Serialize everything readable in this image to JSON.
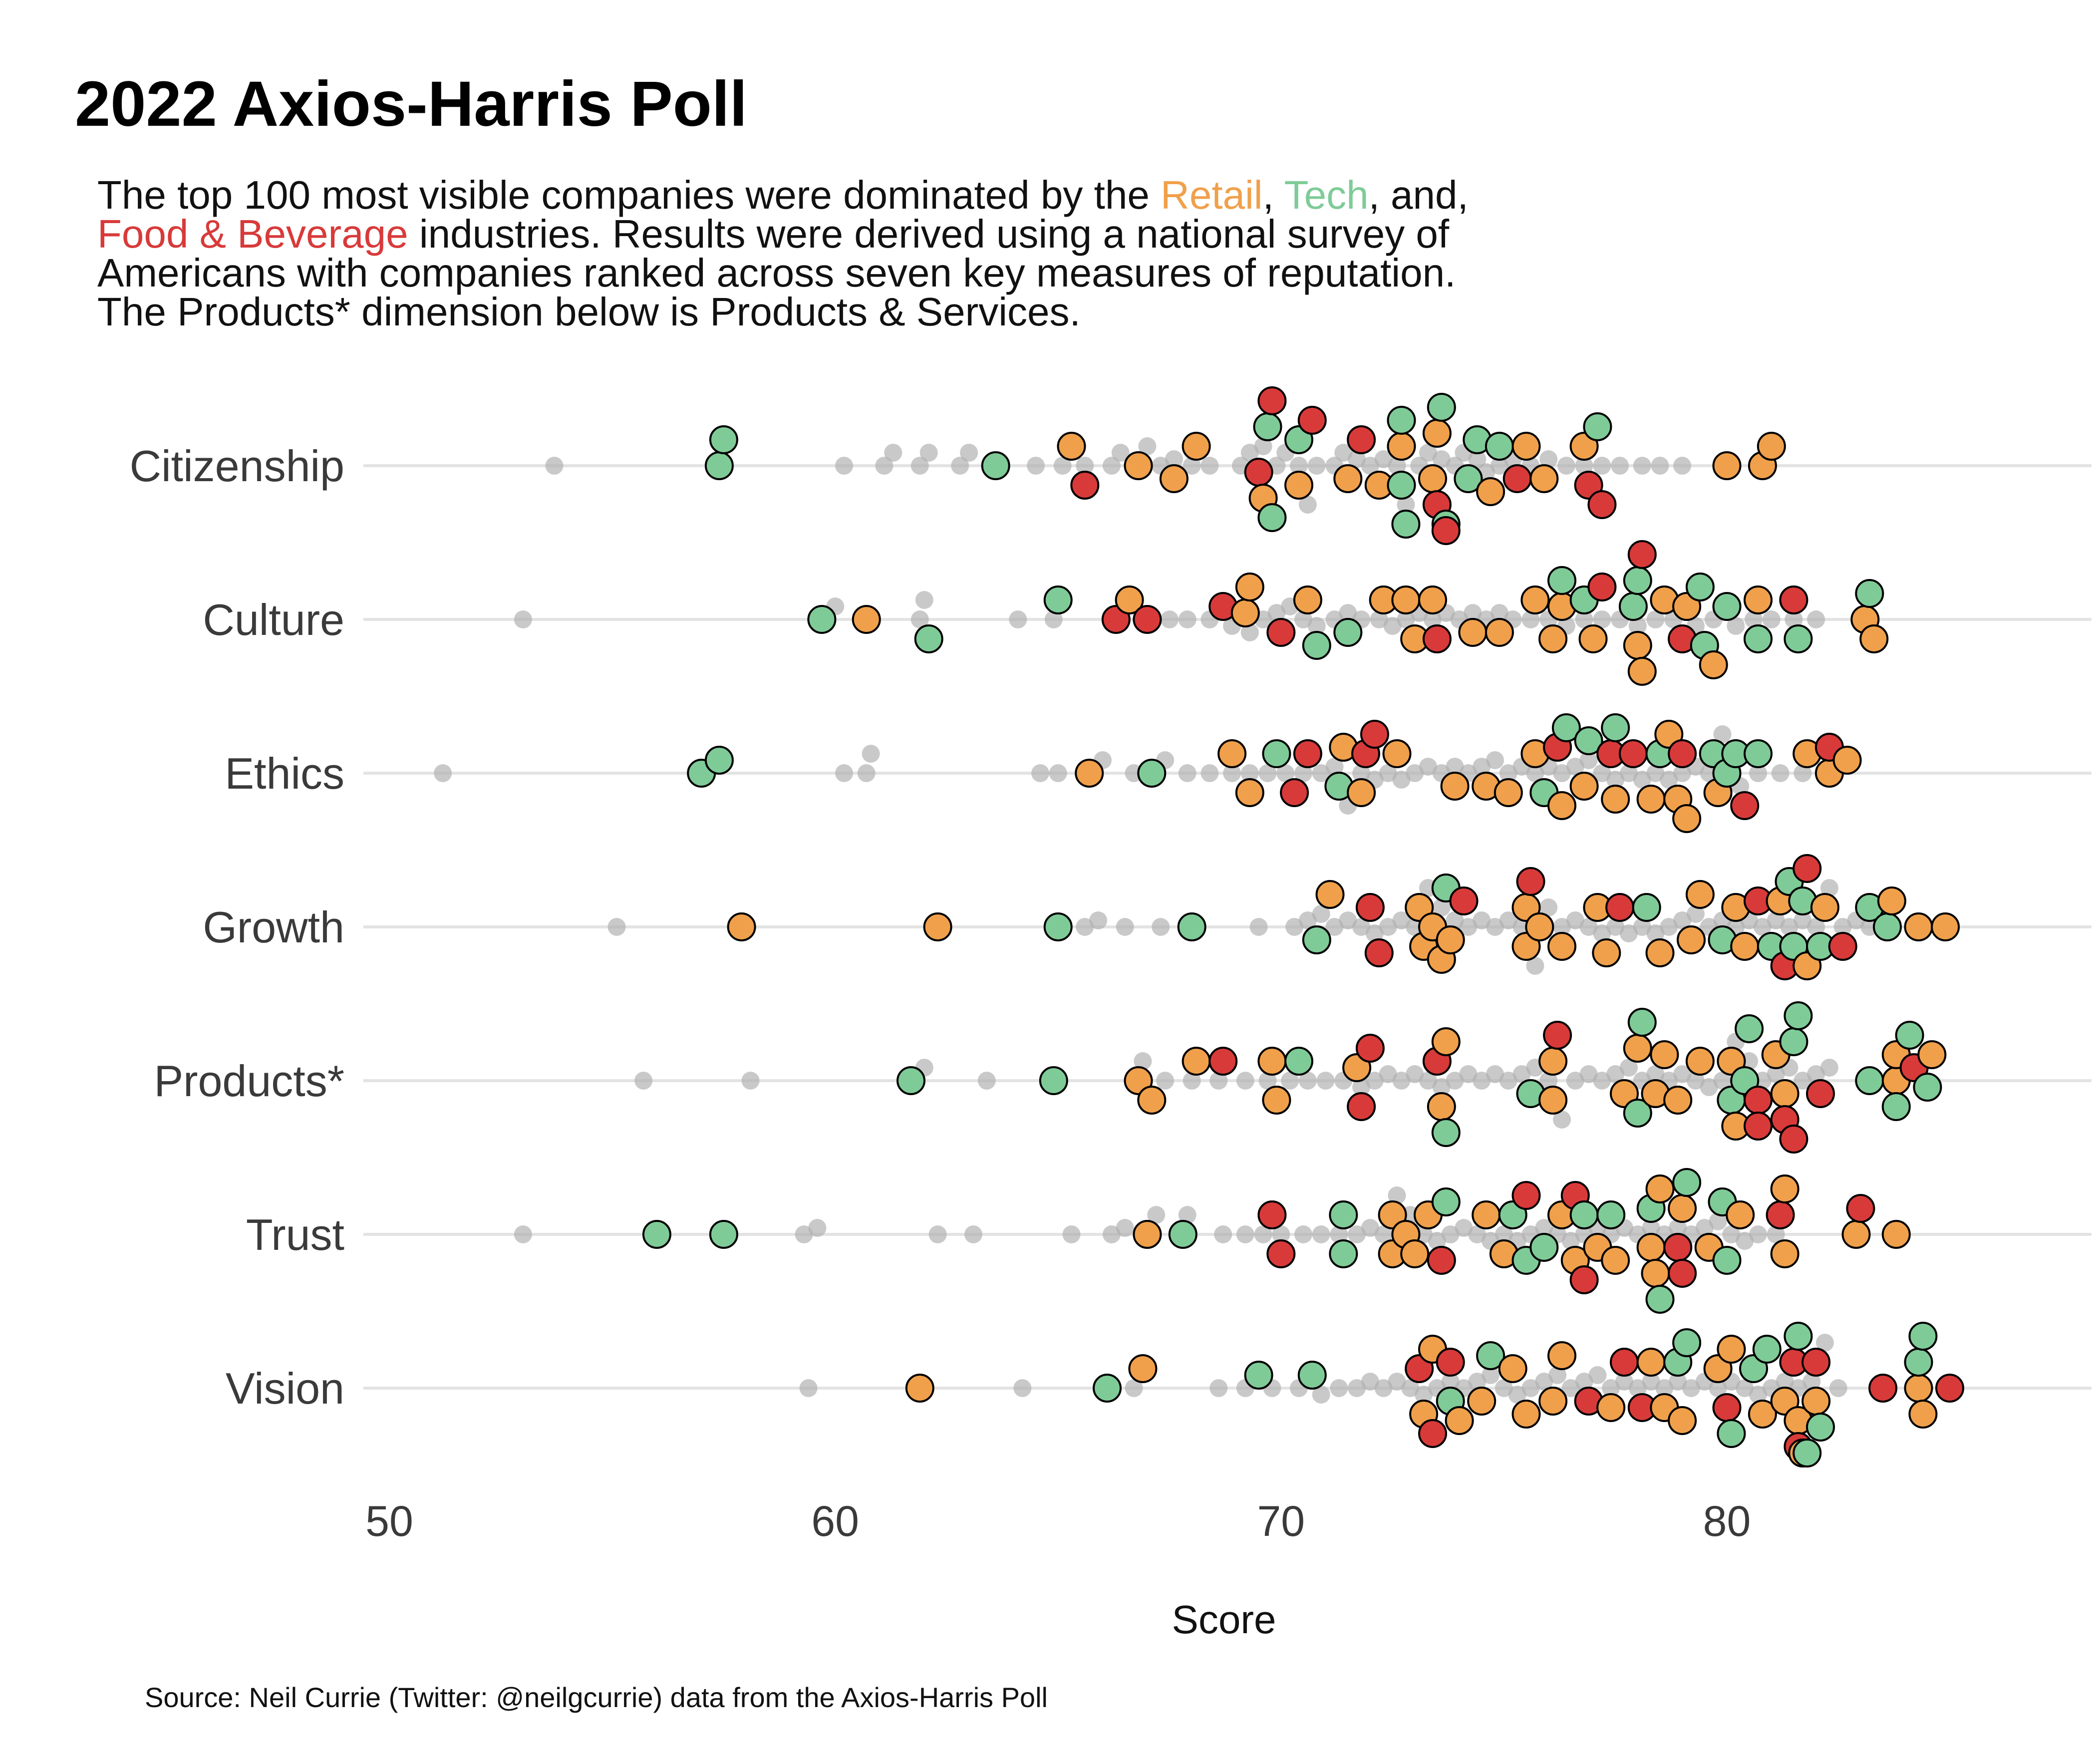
{
  "colors": {
    "retail": "#F0A04B",
    "tech": "#7FCB98",
    "food": "#D83A3A",
    "other": "#AFAFAF",
    "text": "#111111",
    "grid": "#E3E3E3"
  },
  "header": {
    "title": "2022 Axios-Harris Poll",
    "subtitle_lines": [
      [
        {
          "text": "The top 100 most visible companies were dominated by the ",
          "color": "text"
        },
        {
          "text": "Retail",
          "color": "retail"
        },
        {
          "text": ", ",
          "color": "text"
        },
        {
          "text": "Tech",
          "color": "tech"
        },
        {
          "text": ", and,",
          "color": "text"
        }
      ],
      [
        {
          "text": "Food & Beverage",
          "color": "food"
        },
        {
          "text": " industries. Results were derived using a national survey of",
          "color": "text"
        }
      ],
      [
        {
          "text": "Americans with companies ranked across seven key measures of reputation.",
          "color": "text"
        }
      ],
      [
        {
          "text": "The Products* dimension below is Products & Services.",
          "color": "text"
        }
      ]
    ]
  },
  "footer": {
    "caption": "Source: Neil Currie (Twitter: @neilgcurrie) data from the Axios-Harris Poll"
  },
  "chart_data": {
    "type": "scatter",
    "subtype": "beeswarm",
    "title": "2022 Axios-Harris Poll",
    "xlabel": "Score",
    "ylabel": "",
    "xlim": [
      50,
      86.5
    ],
    "xticks": [
      50,
      60,
      70,
      80
    ],
    "grid": "horizontal major only",
    "legend": "none (colors explained in subtitle)",
    "categories": [
      "Citizenship",
      "Culture",
      "Ethics",
      "Growth",
      "Products*",
      "Trust",
      "Vision"
    ],
    "highlight_industries": [
      "Retail",
      "Tech",
      "Food & Beverage"
    ],
    "series": [
      {
        "category": "Citizenship",
        "retail": [
          65.3,
          66.8,
          67.6,
          68.1,
          69.6,
          70.4,
          71.5,
          72.2,
          72.7,
          73.4,
          73.5,
          74.7,
          75.5,
          75.9,
          76.8,
          80.0,
          80.8,
          81.0
        ],
        "tech": [
          57.4,
          57.5,
          63.6,
          69.7,
          69.8,
          70.4,
          72.7,
          72.7,
          72.8,
          73.6,
          73.7,
          74.2,
          74.4,
          74.9,
          77.1
        ],
        "food": [
          65.6,
          69.5,
          69.8,
          70.7,
          71.8,
          73.5,
          73.7,
          75.3,
          76.9,
          77.2
        ],
        "other": [
          53.7,
          60.2,
          61.1,
          61.3,
          61.9,
          62.1,
          62.8,
          63.0,
          64.5,
          65.1,
          65.6,
          66.2,
          66.4,
          67.0,
          67.3,
          67.6,
          68.0,
          68.4,
          69.1,
          69.3,
          69.6,
          69.9,
          70.1,
          70.4,
          70.6,
          70.8,
          71.2,
          71.4,
          71.7,
          72.0,
          72.3,
          72.6,
          72.8,
          73.1,
          73.3,
          73.6,
          73.9,
          74.1,
          74.4,
          74.6,
          74.9,
          75.2,
          75.6,
          76.0,
          76.4,
          76.8,
          77.2,
          77.6,
          78.1,
          78.5,
          79.0
        ]
      },
      {
        "category": "Culture",
        "retail": [
          60.7,
          66.6,
          69.2,
          69.3,
          70.6,
          72.3,
          72.8,
          73.0,
          73.4,
          74.3,
          74.9,
          75.7,
          76.1,
          76.3,
          77.0,
          78.0,
          78.1,
          78.6,
          79.1,
          79.7,
          80.7,
          83.3,
          83.1
        ],
        "tech": [
          59.7,
          62.1,
          65.0,
          70.8,
          71.5,
          76.3,
          76.8,
          77.9,
          78.0,
          79.4,
          79.5,
          80.0,
          80.7,
          81.6,
          83.2
        ],
        "food": [
          66.3,
          67.0,
          68.7,
          70.0,
          73.5,
          77.2,
          78.1,
          79.0,
          81.5
        ],
        "other": [
          53.0,
          60.0,
          61.9,
          62.0,
          64.1,
          64.9,
          67.5,
          67.9,
          68.4,
          68.9,
          69.3,
          69.6,
          69.9,
          70.2,
          70.5,
          70.8,
          71.2,
          71.5,
          71.8,
          72.2,
          72.5,
          72.8,
          73.1,
          73.4,
          73.7,
          74.0,
          74.3,
          74.6,
          74.9,
          75.2,
          75.6,
          76.0,
          76.4,
          76.8,
          77.2,
          77.6,
          78.0,
          78.4,
          78.8,
          79.3,
          79.7,
          80.2,
          80.6,
          81.0,
          81.5,
          82.0
        ]
      },
      {
        "category": "Ethics",
        "retail": [
          65.7,
          68.9,
          69.3,
          71.4,
          71.8,
          72.6,
          73.9,
          74.6,
          75.1,
          75.7,
          76.3,
          76.8,
          77.5,
          78.3,
          78.7,
          78.9,
          79.1,
          79.8,
          81.8,
          82.3,
          82.7
        ],
        "tech": [
          57.0,
          57.4,
          67.1,
          69.9,
          71.3,
          75.9,
          76.4,
          76.9,
          77.5,
          78.5,
          79.7,
          80.0,
          80.2,
          80.7
        ],
        "food": [
          70.3,
          70.6,
          71.9,
          72.1,
          76.2,
          77.4,
          77.9,
          79.0,
          80.4,
          82.3
        ],
        "other": [
          51.2,
          60.2,
          60.7,
          60.8,
          64.6,
          65.0,
          66.0,
          66.7,
          67.4,
          67.9,
          68.4,
          68.9,
          69.3,
          69.7,
          70.1,
          70.5,
          70.9,
          71.2,
          71.5,
          71.8,
          72.1,
          72.4,
          72.7,
          73.0,
          73.3,
          73.6,
          73.9,
          74.2,
          74.5,
          74.8,
          75.1,
          75.4,
          75.7,
          76.0,
          76.3,
          76.6,
          76.9,
          77.2,
          77.5,
          77.8,
          78.1,
          78.4,
          78.7,
          79.0,
          79.3,
          79.6,
          79.9,
          80.3,
          80.7,
          81.2,
          81.7
        ]
      },
      {
        "category": "Growth",
        "retail": [
          57.9,
          62.3,
          71.1,
          73.1,
          73.2,
          73.4,
          73.6,
          73.8,
          75.5,
          75.5,
          75.8,
          76.3,
          77.1,
          77.3,
          78.5,
          79.2,
          79.4,
          80.2,
          80.4,
          81.2,
          81.8,
          82.2,
          83.7,
          84.3,
          84.9
        ],
        "tech": [
          65.0,
          68.0,
          70.8,
          73.7,
          78.2,
          79.9,
          81.0,
          81.4,
          81.5,
          81.7,
          82.1,
          83.2,
          83.6
        ],
        "food": [
          72.0,
          72.2,
          74.1,
          75.6,
          77.6,
          80.7,
          81.3,
          81.8,
          82.6
        ],
        "other": [
          55.1,
          65.6,
          65.9,
          66.5,
          67.3,
          69.5,
          70.3,
          70.6,
          70.9,
          71.2,
          71.5,
          71.8,
          72.1,
          72.4,
          72.7,
          73.0,
          73.3,
          73.6,
          73.9,
          74.2,
          74.5,
          74.8,
          75.1,
          75.4,
          75.7,
          76.0,
          76.3,
          76.6,
          76.9,
          77.2,
          77.5,
          77.8,
          78.1,
          78.4,
          78.7,
          79.0,
          79.3,
          79.6,
          79.9,
          80.2,
          80.5,
          80.8,
          81.1,
          81.4,
          81.7,
          82.0,
          82.3,
          82.6,
          82.9,
          83.2
        ]
      },
      {
        "category": "Products*",
        "retail": [
          66.8,
          67.1,
          68.1,
          69.8,
          69.9,
          71.7,
          73.6,
          73.7,
          76.1,
          76.1,
          77.7,
          78.0,
          78.4,
          78.6,
          78.9,
          79.4,
          80.1,
          80.2,
          81.1,
          81.3,
          83.8,
          84.6,
          83.8
        ],
        "tech": [
          61.7,
          64.9,
          70.4,
          73.7,
          75.6,
          78.0,
          78.1,
          80.1,
          80.4,
          80.5,
          81.5,
          81.6,
          83.2,
          83.8,
          84.5,
          84.1
        ],
        "food": [
          68.7,
          71.8,
          72.0,
          73.5,
          76.2,
          80.7,
          80.7,
          81.3,
          81.5,
          82.1,
          84.2
        ],
        "other": [
          55.7,
          58.1,
          62.0,
          63.4,
          66.9,
          67.4,
          68.0,
          68.6,
          69.2,
          69.7,
          70.2,
          70.6,
          71.0,
          71.4,
          71.8,
          72.1,
          72.4,
          72.7,
          73.0,
          73.3,
          73.6,
          73.9,
          74.2,
          74.5,
          74.8,
          75.1,
          75.4,
          75.7,
          76.0,
          76.3,
          76.6,
          76.9,
          77.2,
          77.5,
          77.8,
          78.1,
          78.4,
          78.7,
          79.0,
          79.3,
          79.6,
          79.9,
          80.2,
          80.5,
          80.8,
          81.1,
          81.4,
          81.7,
          82.0,
          82.3
        ]
      },
      {
        "category": "Trust",
        "retail": [
          67.0,
          72.5,
          72.5,
          72.8,
          73.0,
          73.3,
          74.6,
          75.0,
          76.3,
          76.6,
          77.1,
          77.5,
          78.3,
          78.4,
          78.5,
          79.0,
          79.6,
          80.3,
          81.3,
          81.3,
          82.9,
          83.8
        ],
        "tech": [
          56.0,
          57.5,
          67.8,
          71.4,
          71.4,
          73.7,
          75.2,
          75.5,
          75.9,
          76.8,
          77.4,
          78.3,
          78.5,
          79.1,
          79.9,
          80.0
        ],
        "food": [
          69.8,
          70.0,
          73.6,
          75.5,
          76.6,
          76.8,
          78.9,
          79.0,
          81.2,
          83.0
        ],
        "other": [
          53.0,
          59.3,
          59.6,
          62.3,
          63.1,
          65.3,
          66.2,
          66.5,
          67.2,
          67.9,
          68.7,
          69.2,
          69.6,
          70.0,
          70.5,
          70.9,
          71.3,
          71.7,
          72.0,
          72.3,
          72.6,
          72.9,
          73.2,
          73.5,
          73.8,
          74.1,
          74.4,
          74.7,
          75.0,
          75.3,
          75.6,
          75.9,
          76.2,
          76.5,
          76.8,
          77.1,
          77.4,
          77.7,
          78.0,
          78.3,
          78.6,
          78.9,
          79.2,
          79.5,
          79.8,
          80.1,
          80.4,
          80.7,
          81.1
        ]
      },
      {
        "category": "Vision",
        "retail": [
          61.9,
          66.9,
          73.2,
          73.4,
          74.0,
          74.5,
          75.2,
          75.5,
          76.1,
          76.3,
          77.4,
          78.3,
          78.6,
          79.0,
          79.8,
          80.1,
          80.8,
          81.3,
          81.6,
          81.7,
          82.0,
          84.3,
          84.4
        ],
        "tech": [
          66.1,
          69.5,
          70.7,
          73.8,
          74.7,
          78.9,
          79.1,
          80.1,
          80.6,
          80.9,
          81.6,
          81.8,
          82.1,
          84.3,
          84.4
        ],
        "food": [
          73.1,
          73.4,
          73.8,
          76.9,
          77.7,
          78.1,
          80.0,
          81.5,
          81.6,
          82.0,
          83.5,
          85.0
        ],
        "other": [
          59.4,
          64.2,
          66.7,
          68.6,
          69.2,
          69.8,
          70.4,
          70.9,
          71.3,
          71.7,
          72.0,
          72.3,
          72.6,
          72.9,
          73.2,
          73.5,
          73.8,
          74.1,
          74.4,
          74.7,
          75.0,
          75.3,
          75.6,
          75.9,
          76.2,
          76.5,
          76.8,
          77.1,
          77.4,
          77.7,
          78.0,
          78.3,
          78.6,
          78.9,
          79.2,
          79.5,
          79.8,
          80.1,
          80.4,
          80.7,
          81.0,
          81.3,
          81.6,
          81.9,
          82.2,
          82.5
        ]
      }
    ]
  }
}
